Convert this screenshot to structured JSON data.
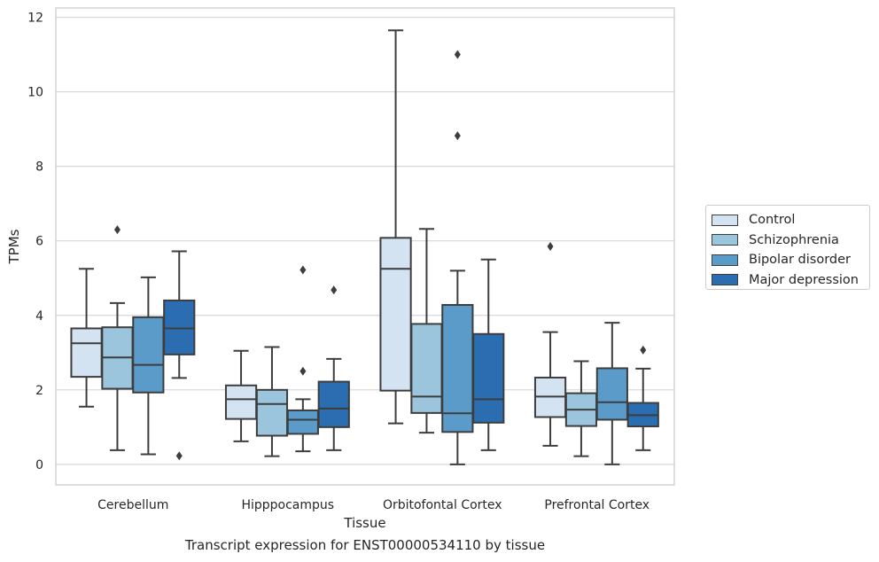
{
  "chart_data": {
    "type": "boxplot",
    "title": "Transcript expression for ENST00000534110 by tissue",
    "xlabel": "Tissue",
    "ylabel": "TPMs",
    "ylim": [
      -0.55,
      12.25
    ],
    "yticks": [
      "0",
      "2",
      "4",
      "6",
      "8",
      "10",
      "12"
    ],
    "grid": "horizontal",
    "legend_position": "right, outside plot",
    "categories": [
      "Cerebellum",
      "Hipppocampus",
      "Orbitofontal Cortex",
      "Prefrontal Cortex"
    ],
    "series": [
      {
        "name": "Control",
        "color": "#d3e3f2",
        "boxes": [
          {
            "min": 1.55,
            "q1": 2.35,
            "median": 3.25,
            "q3": 3.65,
            "max": 5.25,
            "outliers": []
          },
          {
            "min": 0.62,
            "q1": 1.22,
            "median": 1.75,
            "q3": 2.12,
            "max": 3.05,
            "outliers": []
          },
          {
            "min": 1.1,
            "q1": 1.98,
            "median": 5.25,
            "q3": 6.08,
            "max": 11.65,
            "outliers": []
          },
          {
            "min": 0.5,
            "q1": 1.27,
            "median": 1.82,
            "q3": 2.33,
            "max": 3.55,
            "outliers": [
              5.85
            ]
          }
        ]
      },
      {
        "name": "Schizophrenia",
        "color": "#9bc4dd",
        "boxes": [
          {
            "min": 0.38,
            "q1": 2.03,
            "median": 2.87,
            "q3": 3.68,
            "max": 4.33,
            "outliers": [
              6.3
            ]
          },
          {
            "min": 0.22,
            "q1": 0.77,
            "median": 1.62,
            "q3": 2.0,
            "max": 3.15,
            "outliers": []
          },
          {
            "min": 0.85,
            "q1": 1.38,
            "median": 1.82,
            "q3": 3.77,
            "max": 6.32,
            "outliers": []
          },
          {
            "min": 0.22,
            "q1": 1.03,
            "median": 1.47,
            "q3": 1.91,
            "max": 2.77,
            "outliers": []
          }
        ]
      },
      {
        "name": "Bipolar disorder",
        "color": "#5b9bc9",
        "boxes": [
          {
            "min": 0.27,
            "q1": 1.93,
            "median": 2.67,
            "q3": 3.95,
            "max": 5.02,
            "outliers": []
          },
          {
            "min": 0.35,
            "q1": 0.82,
            "median": 1.2,
            "q3": 1.45,
            "max": 1.75,
            "outliers": [
              5.22,
              2.5
            ]
          },
          {
            "min": 0.0,
            "q1": 0.87,
            "median": 1.37,
            "q3": 4.28,
            "max": 5.2,
            "outliers": [
              11.0,
              8.82
            ]
          },
          {
            "min": 0.0,
            "q1": 1.2,
            "median": 1.67,
            "q3": 2.58,
            "max": 3.8,
            "outliers": []
          }
        ]
      },
      {
        "name": "Major depression",
        "color": "#2a6db1",
        "boxes": [
          {
            "min": 2.32,
            "q1": 2.95,
            "median": 3.65,
            "q3": 4.4,
            "max": 5.72,
            "outliers": [
              0.23
            ]
          },
          {
            "min": 0.38,
            "q1": 1.0,
            "median": 1.5,
            "q3": 2.22,
            "max": 2.83,
            "outliers": [
              4.68
            ]
          },
          {
            "min": 0.38,
            "q1": 1.12,
            "median": 1.75,
            "q3": 3.5,
            "max": 5.5,
            "outliers": []
          },
          {
            "min": 0.38,
            "q1": 1.02,
            "median": 1.32,
            "q3": 1.65,
            "max": 2.57,
            "outliers": [
              3.07
            ]
          }
        ]
      }
    ]
  }
}
